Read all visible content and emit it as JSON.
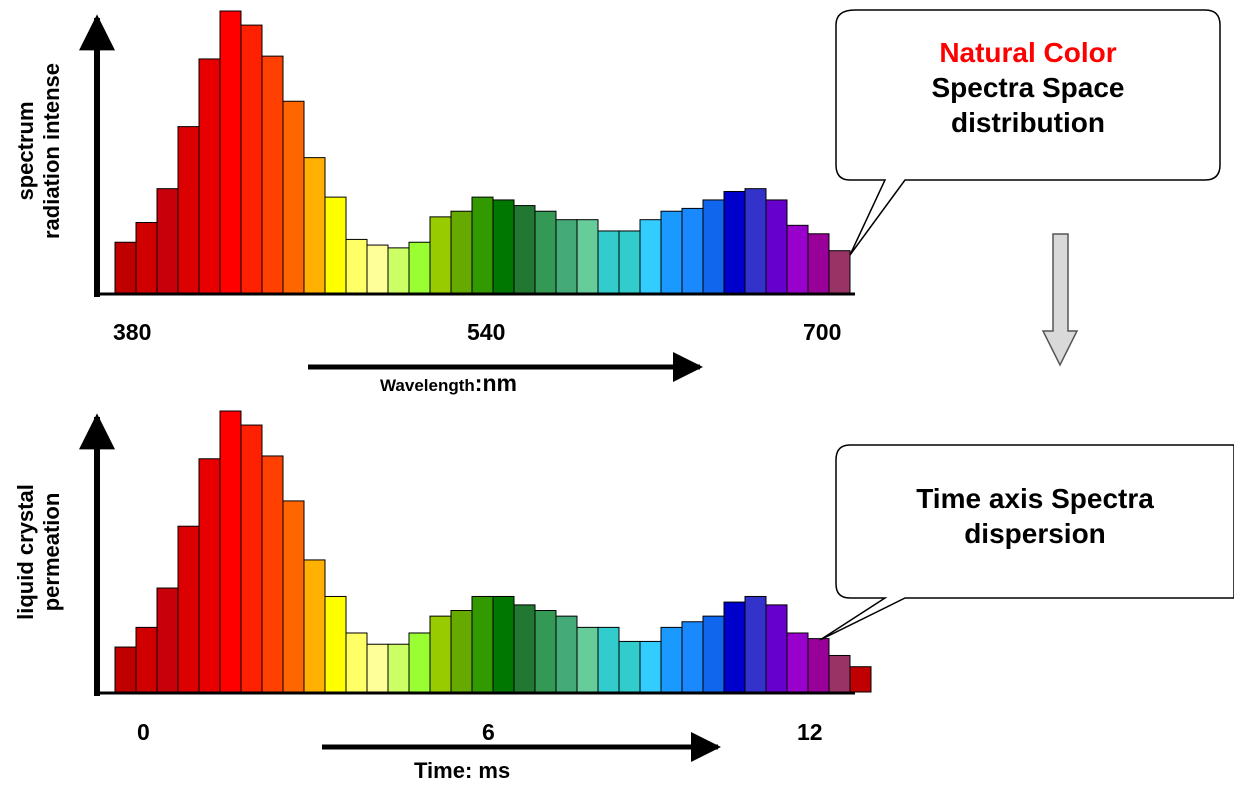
{
  "colors": [
    "#c00000",
    "#d00000",
    "#c8000a",
    "#dc0000",
    "#e80000",
    "#ff0000",
    "#ff2000",
    "#ff4000",
    "#ff6600",
    "#ffb000",
    "#ffff00",
    "#ffff66",
    "#ffff99",
    "#ccff66",
    "#99ff33",
    "#99cc00",
    "#66aa00",
    "#339900",
    "#007700",
    "#227733",
    "#339955",
    "#44aa77",
    "#66cc99",
    "#33cccc",
    "#33cccc",
    "#33ccff",
    "#1a99ff",
    "#1a88ff",
    "#1166ee",
    "#0000cc",
    "#3333cc",
    "#6600cc",
    "#9900cc",
    "#990099",
    "#993366"
  ],
  "callout_top": {
    "line1": "Natural  Color",
    "line2": "Spectra Space",
    "line3": "distribution"
  },
  "callout_bottom": {
    "line1": "Time axis Spectra",
    "line2": "dispersion"
  },
  "chart_data": [
    {
      "type": "bar",
      "ylabel_line1": "spectrum",
      "ylabel_line2": "radiation  intense",
      "xlabel_prefix": "Wavelength",
      "xlabel_unit": ":nm",
      "tick_labels": [
        "380",
        "540",
        "700"
      ],
      "values": [
        0.18,
        0.25,
        0.37,
        0.59,
        0.83,
        1.0,
        0.95,
        0.84,
        0.68,
        0.48,
        0.34,
        0.19,
        0.17,
        0.16,
        0.18,
        0.27,
        0.29,
        0.34,
        0.33,
        0.31,
        0.29,
        0.26,
        0.26,
        0.22,
        0.22,
        0.26,
        0.29,
        0.3,
        0.33,
        0.36,
        0.37,
        0.33,
        0.24,
        0.21,
        0.15
      ]
    },
    {
      "type": "bar",
      "ylabel_line1": "liquid crystal",
      "ylabel_line2": "permeation",
      "xlabel": "Time: ms",
      "tick_labels": [
        "0",
        "6",
        "12"
      ],
      "values": [
        0.16,
        0.23,
        0.37,
        0.59,
        0.83,
        1.0,
        0.95,
        0.84,
        0.68,
        0.47,
        0.34,
        0.21,
        0.17,
        0.17,
        0.21,
        0.27,
        0.29,
        0.34,
        0.34,
        0.31,
        0.29,
        0.27,
        0.23,
        0.23,
        0.18,
        0.18,
        0.23,
        0.25,
        0.27,
        0.32,
        0.34,
        0.31,
        0.21,
        0.19,
        0.13,
        0.09
      ]
    }
  ]
}
